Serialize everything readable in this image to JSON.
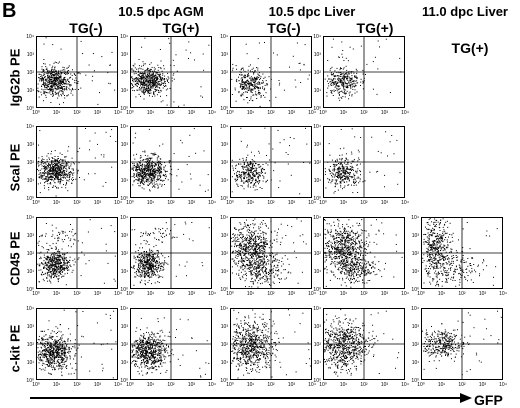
{
  "figure": {
    "panel_letter": "B",
    "groups": [
      {
        "title": "10.5 dpc AGM"
      },
      {
        "title": "10.5 dpc Liver"
      },
      {
        "title": "11.0 dpc Liver"
      }
    ],
    "columns": [
      {
        "label": "TG(-)"
      },
      {
        "label": "TG(+)"
      },
      {
        "label": "TG(-)"
      },
      {
        "label": "TG(+)"
      },
      {
        "label": "TG(+)"
      }
    ],
    "rows": [
      {
        "label": "IgG2b PE"
      },
      {
        "label": "Scal PE"
      },
      {
        "label": "CD45 PE"
      },
      {
        "label": "c-kit PE"
      }
    ],
    "x_axis_label": "GFP",
    "tick_labels": [
      "10⁰",
      "10¹",
      "10²",
      "10³",
      "10⁴"
    ],
    "colors": {
      "ink": "#000000",
      "background": "#ffffff"
    }
  }
}
